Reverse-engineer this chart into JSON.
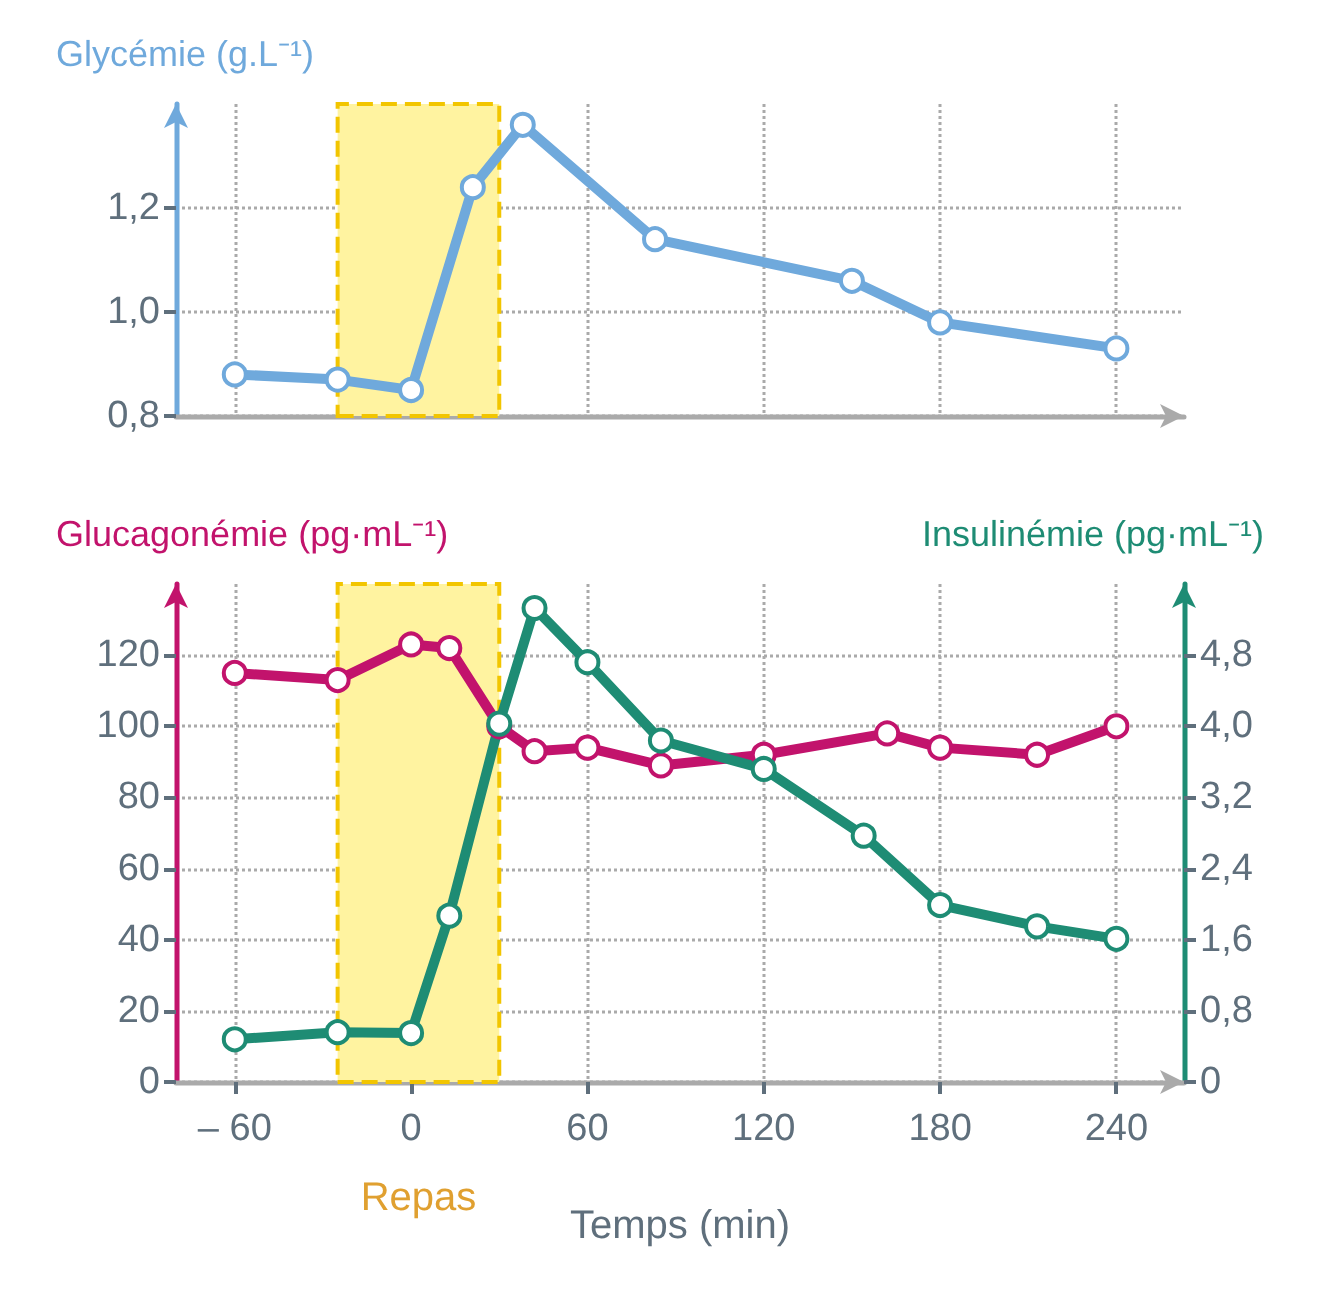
{
  "chart_data": [
    {
      "type": "line",
      "ylabel": "Glycémie (g.L⁻¹)",
      "xlim": [
        -80,
        263
      ],
      "xticks": [
        -60,
        0,
        60,
        120,
        180,
        240
      ],
      "ylim": [
        0.8,
        1.4
      ],
      "yticks": [
        {
          "value": 0.8,
          "label": "0,8"
        },
        {
          "value": 1.0,
          "label": "1,0"
        },
        {
          "value": 1.2,
          "label": "1,2"
        }
      ],
      "tick_labels": "y",
      "grid": true,
      "marker": "circle",
      "series": [
        {
          "color": "#6fa9dc",
          "x": [
            -60,
            -25,
            0,
            21,
            38,
            83,
            150,
            180,
            240
          ],
          "values": [
            0.88,
            0.87,
            0.85,
            1.24,
            1.36,
            1.14,
            1.06,
            0.98,
            0.93
          ]
        }
      ],
      "bands": [
        {
          "axis": "x",
          "from": -25,
          "to": 30,
          "color": "#fff3a0"
        }
      ]
    },
    {
      "type": "line",
      "xlabel": "Temps (min)",
      "ylabel": "Glucagonémie (pg·mL⁻¹)",
      "y2label": "Insulinémie (pg·mL⁻¹)",
      "xlim": [
        -80,
        263
      ],
      "xticks": [
        {
          "value": -60,
          "label": "– 60"
        },
        0,
        60,
        120,
        180,
        240
      ],
      "ylim": [
        0,
        140
      ],
      "yticks": [
        0,
        20,
        40,
        60,
        80,
        100,
        120
      ],
      "y2lim": [
        0,
        5.6
      ],
      "y2ticks": [
        0,
        {
          "value": 0.8,
          "label": "0,8"
        },
        {
          "value": 1.6,
          "label": "1,6"
        },
        {
          "value": 2.4,
          "label": "2,4"
        },
        {
          "value": 3.2,
          "label": "3,2"
        },
        {
          "value": 4.0,
          "label": "4,0"
        },
        {
          "value": 4.8,
          "label": "4,8"
        }
      ],
      "grid": true,
      "marker": "circle",
      "series": [
        {
          "color": "#c2136c",
          "x": [
            -60,
            -25,
            0,
            13,
            30,
            42,
            60,
            85,
            120,
            162,
            180,
            213,
            240
          ],
          "values": [
            115,
            113,
            123,
            122,
            100,
            93,
            94,
            89,
            92,
            98,
            94,
            92,
            100
          ]
        },
        {
          "color": "#1e8c74",
          "axis": "y2",
          "x": [
            -60,
            -25,
            0,
            13,
            30,
            42,
            60,
            85,
            120,
            154,
            180,
            213,
            240
          ],
          "values": [
            0.48,
            0.56,
            0.55,
            1.87,
            4.03,
            5.33,
            4.72,
            3.84,
            3.52,
            2.77,
            1.99,
            1.75,
            1.61
          ]
        }
      ],
      "bands": [
        {
          "axis": "x",
          "from": -25,
          "to": 30,
          "label": "Repas",
          "color": "#fff3a0"
        }
      ]
    }
  ]
}
